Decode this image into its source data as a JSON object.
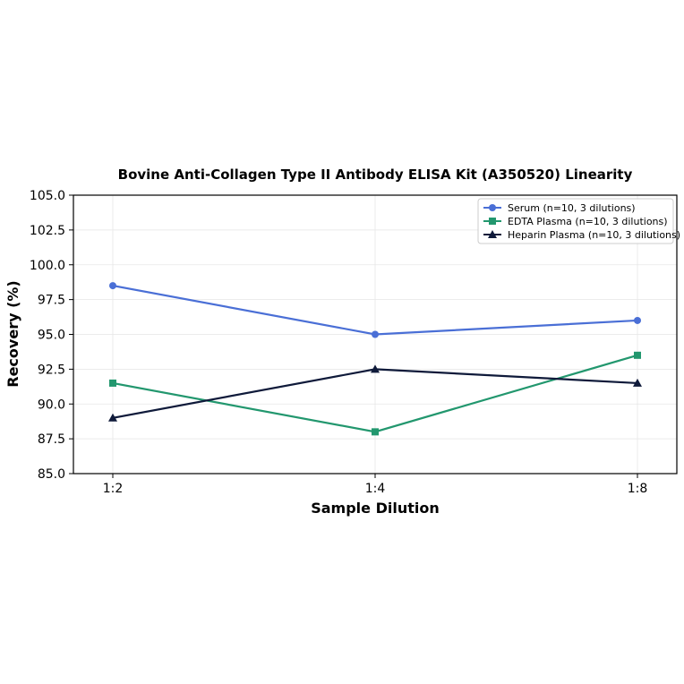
{
  "chart_data": {
    "type": "line",
    "title": "Bovine Anti-Collagen Type II Antibody ELISA Kit (A350520) Linearity",
    "xlabel": "Sample Dilution",
    "ylabel": "Recovery (%)",
    "categories": [
      "1:2",
      "1:4",
      "1:8"
    ],
    "ylim": [
      85.0,
      105.0
    ],
    "yticks": [
      "85.0",
      "87.5",
      "90.0",
      "92.5",
      "95.0",
      "97.5",
      "100.0",
      "102.5",
      "105.0"
    ],
    "grid": true,
    "legend_position": "top-right",
    "series": [
      {
        "name": "Serum (n=10, 3 dilutions)",
        "values": [
          98.5,
          95.0,
          96.0
        ],
        "color": "#4a6fd6",
        "marker": "circle"
      },
      {
        "name": "EDTA Plasma (n=10, 3 dilutions)",
        "values": [
          91.5,
          88.0,
          93.5
        ],
        "color": "#22976e",
        "marker": "square"
      },
      {
        "name": "Heparin Plasma (n=10, 3 dilutions)",
        "values": [
          89.0,
          92.5,
          91.5
        ],
        "color": "#0f1a3a",
        "marker": "triangle"
      }
    ]
  }
}
